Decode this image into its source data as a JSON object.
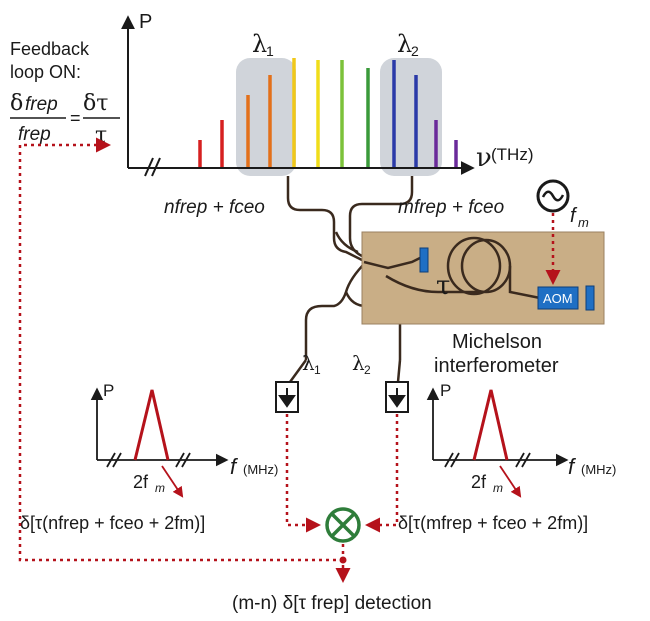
{
  "colors": {
    "feedback": "#b5121b",
    "fiber": "#3a2a1e",
    "panel": "#c9ae86",
    "aom": "#1f6fc4",
    "mixer": "#2e7d3a",
    "lambda_box": "#c8cdd3"
  },
  "feedback": {
    "line1": "Feedback",
    "line2": "loop ON:",
    "frac1_num_delta": "δ",
    "frac1_num": "frep",
    "frac1_den": "frep",
    "equals": "=",
    "frac2_num": "δτ",
    "frac2_den": "τ"
  },
  "spectrum": {
    "p_label": "P",
    "x_label_symbol": "ν",
    "x_label_unit": "(THz)",
    "lambda1": "λ",
    "lambda1_sub": "1",
    "lambda2": "λ",
    "lambda2_sub": "2",
    "left_beat": "nfrep + fceo",
    "right_beat": "mfrep + fceo",
    "comb_colors": [
      "#d62020",
      "#d62020",
      "#e3701a",
      "#e3701a",
      "#f0c81a",
      "#f0dd1a",
      "#7cc23a",
      "#3a9a3a",
      "#2a3aa8",
      "#2a3aa8",
      "#6a2a9a",
      "#6a2a9a"
    ]
  },
  "source": {
    "fm_label": "f",
    "fm_sub": "m",
    "tau": "τ",
    "aom_label": "AOM",
    "interferometer_line1": "Michelson",
    "interferometer_line2": "interferometer"
  },
  "detectors": {
    "lambda1": "λ",
    "lambda1_sub": "1",
    "lambda2": "λ",
    "lambda2_sub": "2"
  },
  "left_plot": {
    "p_label": "P",
    "x_label": "f",
    "x_unit": "(MHz)",
    "peak_label": "2f",
    "peak_sub": "m",
    "formula": "δ[τ(nfrep + fceo + 2fm)]"
  },
  "right_plot": {
    "p_label": "P",
    "x_label": "f",
    "x_unit": "(MHz)",
    "peak_label": "2f",
    "peak_sub": "m",
    "formula": "δ[τ(mfrep + fceo + 2fm)]"
  },
  "detection": {
    "label": "(m-n) δ[τ frep] detection"
  }
}
